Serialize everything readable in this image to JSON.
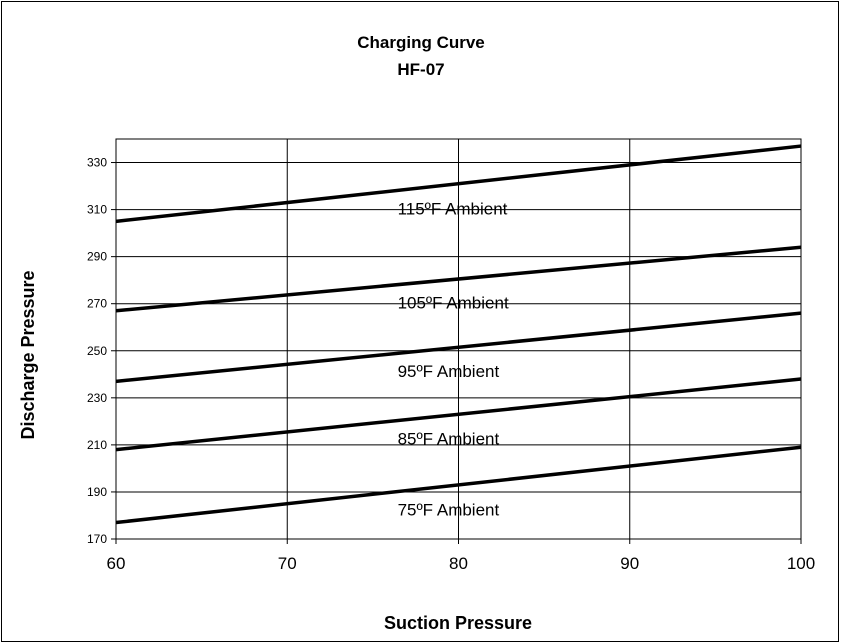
{
  "chart_data": {
    "type": "line",
    "title": "Charging Curve",
    "subtitle": "HF-07",
    "xlabel": "Suction Pressure",
    "ylabel": "Discharge Pressure",
    "xlim": [
      60,
      100
    ],
    "ylim": [
      170,
      340
    ],
    "xticks": [
      60,
      70,
      80,
      90,
      100
    ],
    "yticks": [
      170,
      190,
      210,
      230,
      250,
      270,
      290,
      310,
      330
    ],
    "grid": true,
    "legend": "none",
    "series": [
      {
        "name": "115ºF Ambient",
        "x": [
          60,
          100
        ],
        "y": [
          305,
          337
        ]
      },
      {
        "name": "105ºF Ambient",
        "x": [
          60,
          100
        ],
        "y": [
          267,
          294
        ]
      },
      {
        "name": "95ºF Ambient",
        "x": [
          60,
          100
        ],
        "y": [
          237,
          266
        ]
      },
      {
        "name": "85ºF Ambient",
        "x": [
          60,
          100
        ],
        "y": [
          208,
          238
        ]
      },
      {
        "name": "75ºF Ambient",
        "x": [
          60,
          100
        ],
        "y": [
          177,
          209
        ]
      }
    ],
    "line_color": "#000000"
  }
}
